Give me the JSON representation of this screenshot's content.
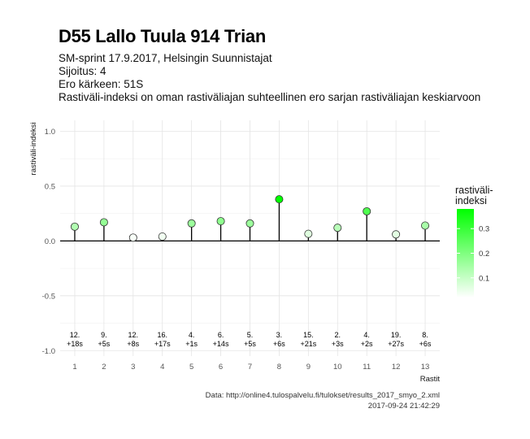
{
  "header": {
    "title": "D55 Lallo Tuula 914 Trian",
    "subtitle_lines": [
      "SM-sprint 17.9.2017, Helsingin Suunnistajat",
      "Sijoitus: 4",
      "Ero kärkeen: 51S",
      "Rastiväli-indeksi on oman rastiväliajan suhteellinen ero sarjan rastiväliajan keskiarvoon"
    ]
  },
  "caption": {
    "source": "Data: http://online4.tulospalvelu.fi/tulokset/results_2017_smyo_2.xml",
    "timestamp": "2017-09-24 21:42:29"
  },
  "chart_data": {
    "type": "scatter",
    "xlabel": "Rastit",
    "ylabel": "rastiväli-indeksi",
    "x": [
      1,
      2,
      3,
      4,
      5,
      6,
      7,
      8,
      9,
      10,
      11,
      12,
      13
    ],
    "values": [
      0.13,
      0.17,
      0.03,
      0.04,
      0.16,
      0.18,
      0.16,
      0.38,
      0.065,
      0.12,
      0.27,
      0.06,
      0.14
    ],
    "point_labels_top": [
      "12.",
      "9.",
      "12.",
      "16.",
      "4.",
      "6.",
      "5.",
      "3.",
      "15.",
      "2.",
      "4.",
      "19.",
      "8."
    ],
    "point_labels_bottom": [
      "+18s",
      "+5s",
      "+8s",
      "+17s",
      "+1s",
      "+14s",
      "+5s",
      "+6s",
      "+21s",
      "+3s",
      "+2s",
      "+27s",
      "+6s"
    ],
    "xlim": [
      0.5,
      13.5
    ],
    "ylim": [
      -1.05,
      1.1
    ],
    "y_ticks": [
      -1.0,
      -0.5,
      0.0,
      0.5,
      1.0
    ],
    "y_tick_labels": [
      "-1.0",
      "-0.5",
      "0.0",
      "0.5",
      "1.0"
    ],
    "x_ticks": [
      1,
      2,
      3,
      4,
      5,
      6,
      7,
      8,
      9,
      10,
      11,
      12,
      13
    ],
    "x_tick_labels": [
      "1",
      "2",
      "3",
      "4",
      "5",
      "6",
      "7",
      "8",
      "9",
      "10",
      "11",
      "12",
      "13"
    ],
    "grid": true,
    "legend": {
      "title_lines": [
        "rastiväli-",
        "indeksi"
      ],
      "position": "right",
      "range": [
        0.02,
        0.38
      ],
      "ticks": [
        0.1,
        0.2,
        0.3
      ],
      "tick_labels": [
        "0.1",
        "0.2",
        "0.3"
      ],
      "color_low": "#ffffff",
      "color_high": "#00ff00"
    },
    "colors": {
      "point_stroke": "#333333",
      "stem": "#000000",
      "grid": "#e4e4e4",
      "zero_line": "#000000"
    }
  }
}
